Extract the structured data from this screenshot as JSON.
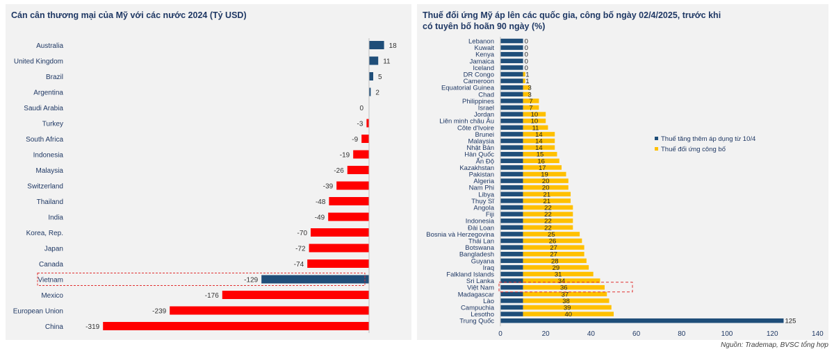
{
  "left_chart": {
    "title": "Cán cân thương mại của Mỹ với các nước 2024 (Tỷ USD)"
  },
  "right_chart": {
    "title": "Thuế đối ứng Mỹ áp lên các quốc gia, công bố ngày 02/4/2025, trước khi có tuyên bố hoãn 90 ngày (%)"
  },
  "source": "Nguồn: Trademap, BVSC tổng hợp",
  "colors": {
    "navy": "#1f4e79",
    "red": "#ff0000",
    "yellow": "#ffc000",
    "panel": "#f2f2f2",
    "highlight_box": "#e03030"
  },
  "chart_data": [
    {
      "type": "bar",
      "orientation": "horizontal",
      "title": "Cán cân thương mại của Mỹ với các nước 2024 (Tỷ USD)",
      "categories": [
        "Australia",
        "United Kingdom",
        "Brazil",
        "Argentina",
        "Saudi Arabia",
        "Turkey",
        "South Africa",
        "Indonesia",
        "Malaysia",
        "Switzerland",
        "Thailand",
        "India",
        "Korea, Rep.",
        "Japan",
        "Canada",
        "Vietnam",
        "Mexico",
        "European Union",
        "China"
      ],
      "values": [
        18,
        11,
        5,
        2,
        0,
        -3,
        -9,
        -19,
        -26,
        -39,
        -48,
        -49,
        -70,
        -72,
        -74,
        -129,
        -176,
        -239,
        -319
      ],
      "data_labels": [
        "18",
        "11",
        "5",
        "2",
        "0",
        "-3",
        "-9",
        "-19",
        "-26",
        "-39",
        "-48",
        "-49",
        "-70",
        "-72",
        "-74",
        "-129",
        "-176",
        "-239",
        "-319"
      ],
      "highlight": "Vietnam",
      "positive_color": "#1f4e79",
      "negative_color": "#ff0000",
      "highlight_color": "#1f4e79",
      "xlim": [
        -330,
        22
      ],
      "grid": false
    },
    {
      "type": "bar",
      "orientation": "horizontal",
      "stacked": true,
      "title": "Thuế đối ứng Mỹ áp lên các quốc gia, công bố ngày 02/4/2025, trước khi có tuyên bố hoãn 90 ngày (%)",
      "categories": [
        "Lebanon",
        "Kuwait",
        "Kenya",
        "Jamaica",
        "Iceland",
        "DR Congo",
        "Cameroon",
        "Equatorial Guinea",
        "Chad",
        "Philippines",
        "Israel",
        "Jordan",
        "Liên minh châu Âu",
        "Côte d'Ivoire",
        "Brunei",
        "Malaysia",
        "Nhật Bản",
        "Hàn Quốc",
        "Ấn Độ",
        "Kazakhstan",
        "Pakistan",
        "Algeria",
        "Nam Phi",
        "Libya",
        "Thụy Sĩ",
        "Angola",
        "Fiji",
        "Indonesia",
        "Đài Loan",
        "Bosnia và Herzegovina",
        "Thái Lan",
        "Botswana",
        "Bangladesh",
        "Guyana",
        "Iraq",
        "Falkland Islands",
        "Sri Lanka",
        "Việt Nam",
        "Madagascar",
        "Lào",
        "Campuchia",
        "Lesotho",
        "Trung Quốc"
      ],
      "series": [
        {
          "name": "Thuế tăng thêm áp dụng từ 10/4",
          "values": [
            10,
            10,
            10,
            10,
            10,
            10,
            10,
            10,
            10,
            10,
            10,
            10,
            10,
            10,
            10,
            10,
            10,
            10,
            10,
            10,
            10,
            10,
            10,
            10,
            10,
            10,
            10,
            10,
            10,
            10,
            10,
            10,
            10,
            10,
            10,
            10,
            10,
            10,
            10,
            10,
            10,
            10,
            125
          ]
        },
        {
          "name": "Thuế đối ứng công bố",
          "values": [
            0,
            0,
            0,
            0,
            0,
            1,
            1,
            3,
            3,
            7,
            7,
            10,
            10,
            11,
            14,
            14,
            14,
            15,
            16,
            17,
            19,
            20,
            20,
            21,
            21,
            22,
            22,
            22,
            22,
            25,
            26,
            27,
            27,
            28,
            29,
            31,
            34,
            36,
            37,
            38,
            39,
            40,
            0
          ]
        }
      ],
      "data_labels": [
        "0",
        "0",
        "0",
        "0",
        "0",
        "1",
        "1",
        "3",
        "3",
        "7",
        "7",
        "10",
        "10",
        "11",
        "14",
        "14",
        "14",
        "15",
        "16",
        "17",
        "19",
        "20",
        "20",
        "21",
        "21",
        "22",
        "22",
        "22",
        "22",
        "25",
        "26",
        "27",
        "27",
        "28",
        "29",
        "31",
        "34",
        "36",
        "37",
        "38",
        "39",
        "40",
        "125"
      ],
      "highlight": "Việt Nam",
      "xlim": [
        0,
        140
      ],
      "xticks": [
        0,
        20,
        40,
        60,
        80,
        100,
        120,
        140
      ],
      "legend_position": "right",
      "grid": false
    }
  ]
}
